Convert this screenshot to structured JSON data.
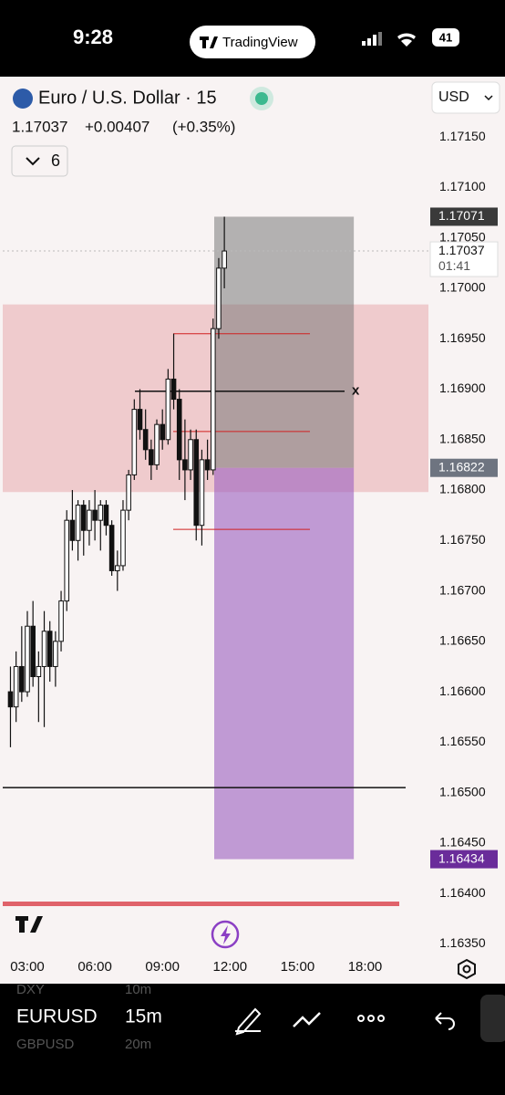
{
  "status_bar": {
    "time": "9:28",
    "app": "TradingView",
    "battery": "41"
  },
  "header": {
    "symbol": "Euro / U.S. Dollar · 15",
    "price": "1.17037",
    "change": "+0.00407",
    "change_pct": "(+0.35%)",
    "indicator_count": "6",
    "currency": "USD"
  },
  "chart": {
    "ylim": [
      1.16335,
      1.1718
    ],
    "xlim": [
      2,
      20.5
    ],
    "price_ticks": [
      {
        "value": 1.1715,
        "label": "1.17150"
      },
      {
        "value": 1.171,
        "label": "1.17100"
      },
      {
        "value": 1.1705,
        "label": "1.17050"
      },
      {
        "value": 1.17,
        "label": "1.17000"
      },
      {
        "value": 1.1695,
        "label": "1.16950"
      },
      {
        "value": 1.169,
        "label": "1.16900"
      },
      {
        "value": 1.1685,
        "label": "1.16850"
      },
      {
        "value": 1.168,
        "label": "1.16800"
      },
      {
        "value": 1.1675,
        "label": "1.16750"
      },
      {
        "value": 1.167,
        "label": "1.16700"
      },
      {
        "value": 1.1665,
        "label": "1.16650"
      },
      {
        "value": 1.166,
        "label": "1.16600"
      },
      {
        "value": 1.1655,
        "label": "1.16550"
      },
      {
        "value": 1.165,
        "label": "1.16500"
      },
      {
        "value": 1.1645,
        "label": "1.16450"
      },
      {
        "value": 1.164,
        "label": "1.16400"
      },
      {
        "value": 1.1635,
        "label": "1.16350"
      }
    ],
    "time_ticks": [
      {
        "value": 3,
        "label": "03:00"
      },
      {
        "value": 6,
        "label": "06:00"
      },
      {
        "value": 9,
        "label": "09:00"
      },
      {
        "value": 12,
        "label": "12:00"
      },
      {
        "value": 15,
        "label": "15:00"
      },
      {
        "value": 18,
        "label": "18:00"
      }
    ],
    "badges": [
      {
        "value": 1.17071,
        "label": "1.17071",
        "color": "#3a3a3a"
      },
      {
        "value": 1.16822,
        "label": "1.16822",
        "color": "#6e7480"
      },
      {
        "value": 1.16434,
        "label": "1.16434",
        "color": "#6a2c9a"
      }
    ],
    "last_price": {
      "value": 1.17037,
      "label": "1.17037",
      "countdown": "01:41"
    },
    "zone": {
      "top": 1.16984,
      "bottom": 1.16798
    },
    "position": {
      "t_start": 11.3,
      "t_end": 17.5,
      "stop": 1.17071,
      "entry": 1.16822,
      "target": 1.16434
    },
    "red_levels": [
      1.16955,
      1.16858,
      1.16761
    ],
    "black_level": {
      "value": 1.16898,
      "marker": "x"
    },
    "support_level": 1.16505,
    "candles": [
      {
        "t": 2.25,
        "o": 1.166,
        "h": 1.16625,
        "l": 1.16545,
        "c": 1.16585
      },
      {
        "t": 2.5,
        "o": 1.16585,
        "h": 1.1664,
        "l": 1.1657,
        "c": 1.16625
      },
      {
        "t": 2.75,
        "o": 1.16625,
        "h": 1.16665,
        "l": 1.1659,
        "c": 1.166
      },
      {
        "t": 3,
        "o": 1.166,
        "h": 1.1668,
        "l": 1.16595,
        "c": 1.16665
      },
      {
        "t": 3.25,
        "o": 1.16665,
        "h": 1.1669,
        "l": 1.16605,
        "c": 1.16615
      },
      {
        "t": 3.5,
        "o": 1.16615,
        "h": 1.1664,
        "l": 1.1657,
        "c": 1.16625
      },
      {
        "t": 3.75,
        "o": 1.16625,
        "h": 1.1668,
        "l": 1.16565,
        "c": 1.1666
      },
      {
        "t": 4,
        "o": 1.1666,
        "h": 1.1667,
        "l": 1.1661,
        "c": 1.16625
      },
      {
        "t": 4.25,
        "o": 1.16625,
        "h": 1.1666,
        "l": 1.16605,
        "c": 1.1665
      },
      {
        "t": 4.5,
        "o": 1.1665,
        "h": 1.167,
        "l": 1.1664,
        "c": 1.1669
      },
      {
        "t": 4.75,
        "o": 1.1669,
        "h": 1.1678,
        "l": 1.1668,
        "c": 1.1677
      },
      {
        "t": 5,
        "o": 1.1677,
        "h": 1.168,
        "l": 1.1674,
        "c": 1.1675
      },
      {
        "t": 5.25,
        "o": 1.1675,
        "h": 1.1679,
        "l": 1.1673,
        "c": 1.16785
      },
      {
        "t": 5.5,
        "o": 1.16785,
        "h": 1.1679,
        "l": 1.16735,
        "c": 1.1676
      },
      {
        "t": 5.75,
        "o": 1.1676,
        "h": 1.1679,
        "l": 1.16745,
        "c": 1.1678
      },
      {
        "t": 6,
        "o": 1.1678,
        "h": 1.168,
        "l": 1.1675,
        "c": 1.1677
      },
      {
        "t": 6.25,
        "o": 1.1677,
        "h": 1.1679,
        "l": 1.1674,
        "c": 1.16785
      },
      {
        "t": 6.5,
        "o": 1.16785,
        "h": 1.1679,
        "l": 1.16755,
        "c": 1.16765
      },
      {
        "t": 6.75,
        "o": 1.16765,
        "h": 1.1677,
        "l": 1.16715,
        "c": 1.1672
      },
      {
        "t": 7,
        "o": 1.1672,
        "h": 1.1674,
        "l": 1.167,
        "c": 1.16725
      },
      {
        "t": 7.25,
        "o": 1.16725,
        "h": 1.1679,
        "l": 1.1672,
        "c": 1.1678
      },
      {
        "t": 7.5,
        "o": 1.1678,
        "h": 1.1682,
        "l": 1.1677,
        "c": 1.16815
      },
      {
        "t": 7.75,
        "o": 1.16815,
        "h": 1.1689,
        "l": 1.1681,
        "c": 1.1688
      },
      {
        "t": 8,
        "o": 1.1688,
        "h": 1.169,
        "l": 1.1685,
        "c": 1.1686
      },
      {
        "t": 8.25,
        "o": 1.1686,
        "h": 1.1688,
        "l": 1.1683,
        "c": 1.1684
      },
      {
        "t": 8.5,
        "o": 1.1684,
        "h": 1.1685,
        "l": 1.1681,
        "c": 1.16825
      },
      {
        "t": 8.75,
        "o": 1.16825,
        "h": 1.1687,
        "l": 1.1682,
        "c": 1.16865
      },
      {
        "t": 9,
        "o": 1.16865,
        "h": 1.1688,
        "l": 1.1684,
        "c": 1.1685
      },
      {
        "t": 9.25,
        "o": 1.1685,
        "h": 1.1692,
        "l": 1.16845,
        "c": 1.1691
      },
      {
        "t": 9.5,
        "o": 1.1691,
        "h": 1.16955,
        "l": 1.1688,
        "c": 1.1689
      },
      {
        "t": 9.75,
        "o": 1.1689,
        "h": 1.169,
        "l": 1.1681,
        "c": 1.1683
      },
      {
        "t": 10,
        "o": 1.1683,
        "h": 1.1687,
        "l": 1.1679,
        "c": 1.1682
      },
      {
        "t": 10.25,
        "o": 1.1682,
        "h": 1.1686,
        "l": 1.1681,
        "c": 1.1685
      },
      {
        "t": 10.5,
        "o": 1.1685,
        "h": 1.1686,
        "l": 1.1675,
        "c": 1.16765
      },
      {
        "t": 10.75,
        "o": 1.16765,
        "h": 1.1684,
        "l": 1.16745,
        "c": 1.1683
      },
      {
        "t": 11,
        "o": 1.1683,
        "h": 1.1685,
        "l": 1.1681,
        "c": 1.1682
      },
      {
        "t": 11.25,
        "o": 1.1682,
        "h": 1.1697,
        "l": 1.16815,
        "c": 1.1696
      },
      {
        "t": 11.5,
        "o": 1.1696,
        "h": 1.1703,
        "l": 1.1695,
        "c": 1.1702
      },
      {
        "t": 11.75,
        "o": 1.1702,
        "h": 1.17071,
        "l": 1.17,
        "c": 1.17037
      }
    ]
  },
  "toolbar": {
    "symbols": [
      {
        "symbol": "DXY",
        "interval": "10m"
      },
      {
        "symbol": "EURUSD",
        "interval": "15m"
      },
      {
        "symbol": "GBPUSD",
        "interval": "20m"
      }
    ]
  }
}
